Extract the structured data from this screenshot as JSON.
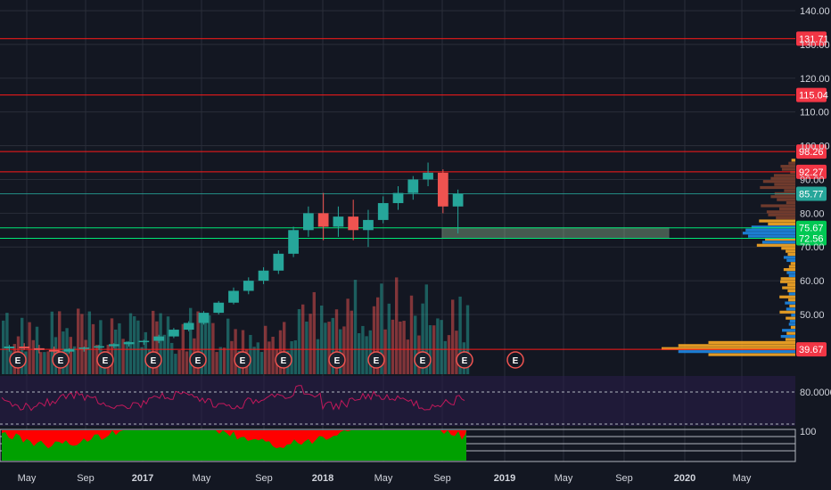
{
  "chart_data": {
    "type": "candlestick",
    "colors": {
      "up": "#26a69a",
      "down": "#ef5350",
      "background": "#131722",
      "grid": "#2a2e39",
      "resistance": "#ff1a1a",
      "support": "#00e676",
      "osc_pane": "#2a1e4a",
      "osc_line": "#c2185b",
      "histogram_pos": "#00a000",
      "histogram_neg": "#ff0000",
      "zone": "#a5d6a7",
      "vp_blue": "#1e88e5",
      "vp_orange": "#f9a825",
      "vp_brown": "#7b3f2f"
    },
    "ylim": [
      35,
      142
    ],
    "y_ticks": [
      "140.00",
      "130.00",
      "120.00",
      "110.00",
      "100.00",
      "90.00",
      "80.00",
      "70.00",
      "60.00",
      "50.00"
    ],
    "x_ticks": [
      {
        "label": "May",
        "bold": false
      },
      {
        "label": "Sep",
        "bold": false
      },
      {
        "label": "2017",
        "bold": true
      },
      {
        "label": "May",
        "bold": false
      },
      {
        "label": "Sep",
        "bold": false
      },
      {
        "label": "2018",
        "bold": true
      },
      {
        "label": "May",
        "bold": false
      },
      {
        "label": "Sep",
        "bold": false
      },
      {
        "label": "2019",
        "bold": true
      },
      {
        "label": "May",
        "bold": false
      },
      {
        "label": "Sep",
        "bold": false
      },
      {
        "label": "2020",
        "bold": true
      },
      {
        "label": "May",
        "bold": false
      }
    ],
    "price_levels": [
      {
        "value": 131.71,
        "label": "131.71",
        "type": "resistance"
      },
      {
        "value": 115.04,
        "label": "115.04",
        "type": "resistance"
      },
      {
        "value": 98.26,
        "label": "98.26",
        "type": "resistance"
      },
      {
        "value": 92.27,
        "label": "92.27",
        "type": "resistance"
      },
      {
        "value": 85.77,
        "label": "85.77",
        "type": "current"
      },
      {
        "value": 75.67,
        "label": "75.67",
        "type": "support"
      },
      {
        "value": 72.56,
        "label": "72.56",
        "type": "support"
      },
      {
        "value": 39.67,
        "label": "39.67",
        "type": "resistance"
      }
    ],
    "zone": {
      "from": 72.56,
      "to": 75.67
    },
    "earnings_events": [
      "E",
      "E",
      "E",
      "E",
      "E",
      "E",
      "E",
      "E",
      "E",
      "E",
      "E",
      "E"
    ],
    "oscillator_label": "80.0000",
    "histogram_label": "100",
    "monthly_ohlc": [
      [
        40,
        41,
        39,
        40.5
      ],
      [
        40.5,
        41.5,
        39.5,
        40
      ],
      [
        40,
        41,
        38.5,
        39.5
      ],
      [
        39.5,
        40.5,
        38,
        39
      ],
      [
        39,
        40,
        38.5,
        39.8
      ],
      [
        39.8,
        40.5,
        39,
        40.2
      ],
      [
        40.2,
        41,
        39.5,
        40.6
      ],
      [
        40.6,
        41.5,
        40,
        41.2
      ],
      [
        41.2,
        42,
        40.5,
        41.8
      ],
      [
        41.8,
        42.5,
        41,
        42.2
      ],
      [
        42.2,
        44,
        41.5,
        43.5
      ],
      [
        43.5,
        46,
        43,
        45.5
      ],
      [
        45.5,
        48,
        45,
        47.5
      ],
      [
        47.5,
        51,
        47,
        50.5
      ],
      [
        50.5,
        54,
        50,
        53.5
      ],
      [
        53.5,
        58,
        53,
        57
      ],
      [
        57,
        61,
        56,
        60
      ],
      [
        60,
        64,
        59,
        63
      ],
      [
        63,
        69,
        62,
        68
      ],
      [
        68,
        76,
        67,
        75
      ],
      [
        75,
        82,
        73,
        80
      ],
      [
        80,
        86,
        72,
        76
      ],
      [
        76,
        82,
        73,
        79
      ],
      [
        79,
        84,
        72,
        75
      ],
      [
        75,
        81,
        70,
        78
      ],
      [
        78,
        85,
        77,
        83
      ],
      [
        83,
        88,
        81,
        86
      ],
      [
        86,
        91,
        84,
        90
      ],
      [
        90,
        95,
        88,
        92
      ],
      [
        92,
        93,
        80,
        82
      ],
      [
        82,
        87,
        74,
        85.77
      ]
    ]
  }
}
